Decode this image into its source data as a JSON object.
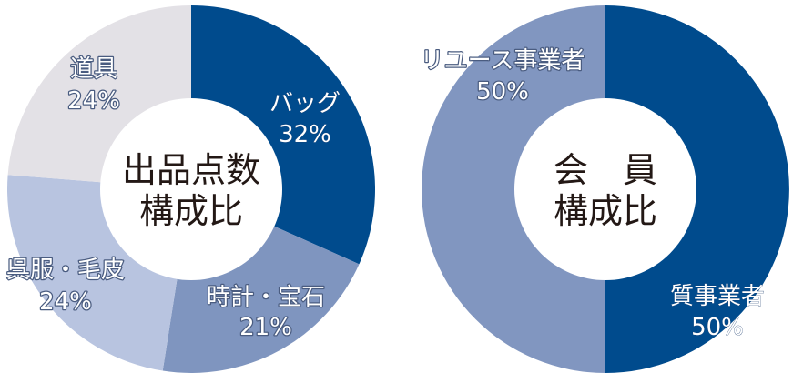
{
  "chart_data": [
    {
      "type": "pie",
      "center_label": [
        "出品点数",
        "構成比"
      ],
      "slices": [
        {
          "label": "バッグ",
          "value": 32,
          "value_text": "32%",
          "color": "#004b8d"
        },
        {
          "label": "時計・宝石",
          "value": 21,
          "value_text": "21%",
          "color": "#7f95bf"
        },
        {
          "label": "呉服・毛皮",
          "value": 24,
          "value_text": "24%",
          "color": "#b8c4e0"
        },
        {
          "label": "道具",
          "value": 24,
          "value_text": "24%",
          "color": "#e3e1e6"
        }
      ]
    },
    {
      "type": "pie",
      "center_label": [
        "会　員",
        "構成比"
      ],
      "slices": [
        {
          "label": "質事業者",
          "value": 50,
          "value_text": "50%",
          "color": "#004b8d"
        },
        {
          "label": "リユース事業者",
          "value": 50,
          "value_text": "50%",
          "color": "#8196c0"
        }
      ]
    }
  ]
}
